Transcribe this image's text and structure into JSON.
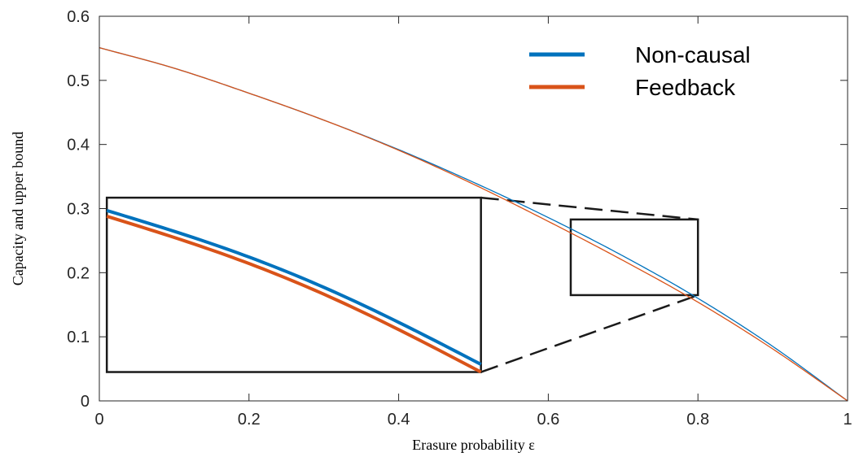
{
  "chart_data": {
    "type": "line",
    "xlabel": "Erasure probability ε",
    "ylabel": "Capacity and upper bound",
    "xlim": [
      0,
      1
    ],
    "ylim": [
      0,
      0.6
    ],
    "xticks": [
      "0",
      "0.2",
      "0.4",
      "0.6",
      "0.8",
      "1"
    ],
    "yticks": [
      "0",
      "0.1",
      "0.2",
      "0.3",
      "0.4",
      "0.5",
      "0.6"
    ],
    "grid": false,
    "legend_position": "top-right",
    "series": [
      {
        "name": "Non-causal",
        "color": "#0072BD",
        "x": [
          0,
          0.1,
          0.2,
          0.3,
          0.4,
          0.5,
          0.6,
          0.7,
          0.8,
          0.9,
          1.0
        ],
        "y": [
          0.551,
          0.519,
          0.48,
          0.438,
          0.392,
          0.341,
          0.286,
          0.226,
          0.16,
          0.085,
          0.0
        ]
      },
      {
        "name": "Feedback",
        "color": "#D95319",
        "x": [
          0,
          0.1,
          0.2,
          0.3,
          0.4,
          0.5,
          0.6,
          0.7,
          0.8,
          0.9,
          1.0
        ],
        "y": [
          0.551,
          0.519,
          0.48,
          0.438,
          0.391,
          0.338,
          0.28,
          0.219,
          0.154,
          0.081,
          0.0
        ]
      }
    ],
    "zoom": {
      "region_x": [
        0.63,
        0.8
      ],
      "region_y": [
        0.165,
        0.283
      ],
      "inset_x": [
        0.01,
        0.51
      ],
      "inset_y": [
        0.045,
        0.317
      ],
      "non_causal_endpoints": [
        0.297,
        0.057
      ],
      "feedback_endpoints": [
        0.288,
        0.045
      ]
    }
  }
}
